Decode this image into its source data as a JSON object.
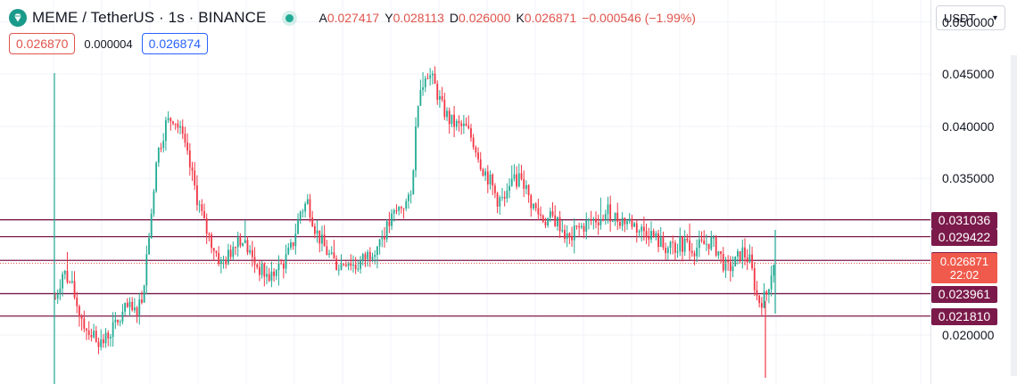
{
  "header": {
    "symbol_title": "MEME / TetherUS · 1s · BINANCE",
    "ohlc": {
      "open_label": "A",
      "open": "0.027417",
      "high_label": "Y",
      "high": "0.028113",
      "low_label": "D",
      "low": "0.026000",
      "close_label": "K",
      "close": "0.026871",
      "change": "−0.000546 (−1.99%)"
    }
  },
  "trade": {
    "sell": "0.026870",
    "spread": "0.000004",
    "buy": "0.026874"
  },
  "currency_select": {
    "value": "USDT"
  },
  "colors": {
    "up": "#22ab94",
    "down": "#f23645",
    "level_line": "#7b1a4a",
    "last_price": "#f05a4c",
    "grid": "#f0f3fa"
  },
  "chart_data": {
    "type": "candlestick",
    "ylim": [
      0.0153,
      0.0521
    ],
    "y_ticks": [
      "0.050000",
      "0.045000",
      "0.040000",
      "0.035000",
      "0.020000"
    ],
    "horizontal_levels": [
      "0.031036",
      "0.029422",
      "0.027147",
      "0.023961",
      "0.021810"
    ],
    "last_price": "0.026871",
    "countdown": "22:02",
    "price_path": [
      0.0235,
      0.0262,
      0.0248,
      0.0222,
      0.0206,
      0.0199,
      0.0192,
      0.0204,
      0.0212,
      0.0226,
      0.0221,
      0.0236,
      0.0308,
      0.0375,
      0.0402,
      0.041,
      0.039,
      0.0362,
      0.033,
      0.0302,
      0.0285,
      0.0268,
      0.0276,
      0.0295,
      0.0288,
      0.0272,
      0.0262,
      0.0255,
      0.0261,
      0.027,
      0.0285,
      0.0318,
      0.0328,
      0.03,
      0.0285,
      0.0272,
      0.0266,
      0.0273,
      0.0265,
      0.0272,
      0.028,
      0.029,
      0.0302,
      0.0316,
      0.0325,
      0.0328,
      0.0432,
      0.0455,
      0.044,
      0.0418,
      0.0405,
      0.04,
      0.0398,
      0.0385,
      0.0362,
      0.0348,
      0.033,
      0.0328,
      0.0345,
      0.0355,
      0.033,
      0.0318,
      0.031,
      0.0312,
      0.0305,
      0.029,
      0.03,
      0.0305,
      0.031,
      0.0312,
      0.0318,
      0.0312,
      0.031,
      0.0308,
      0.03,
      0.03,
      0.0292,
      0.0285,
      0.0282,
      0.0287,
      0.0286,
      0.0283,
      0.0286,
      0.029,
      0.028,
      0.0262,
      0.0268,
      0.028,
      0.027,
      0.0232,
      0.0236,
      0.0272
    ]
  }
}
